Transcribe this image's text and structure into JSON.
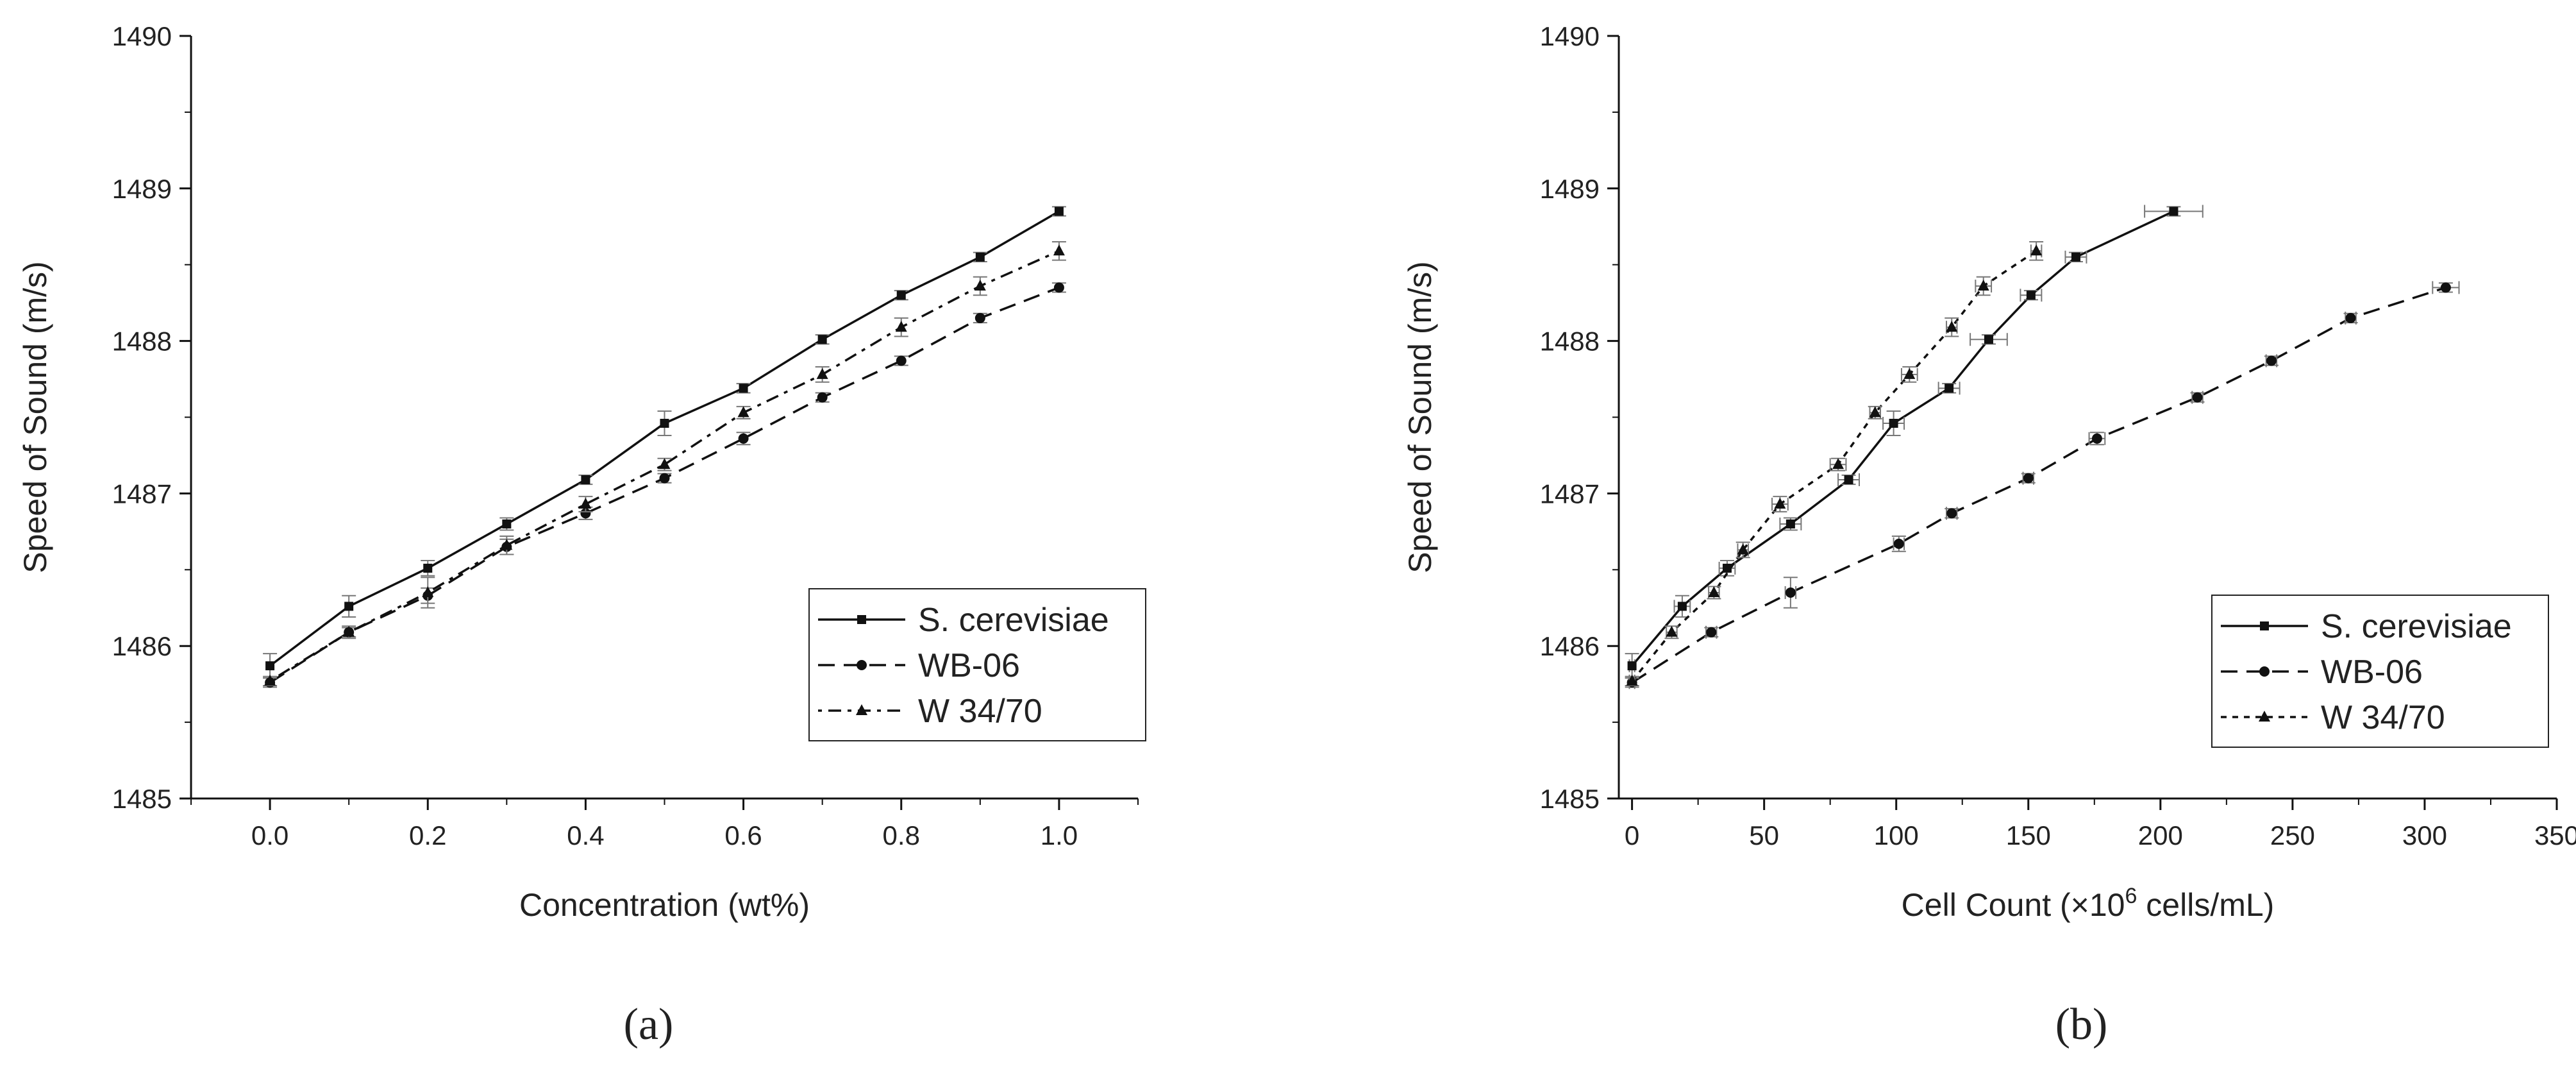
{
  "chart_data": [
    {
      "type": "line",
      "panel_label": "(a)",
      "title": "",
      "xlabel": "Concentration (wt%)",
      "ylabel": "Speed of Sound (m/s)",
      "xlim": [
        -0.1,
        1.1
      ],
      "ylim": [
        1485,
        1490
      ],
      "xticks": [
        "0.0",
        "0.2",
        "0.4",
        "0.6",
        "0.8",
        "1.0"
      ],
      "yticks": [
        "1485",
        "1486",
        "1487",
        "1488",
        "1489",
        "1490"
      ],
      "legend_position": "lower-right",
      "series": [
        {
          "name": "S. cerevisiae",
          "line_style": "solid",
          "marker": "square",
          "x": [
            0.0,
            0.1,
            0.2,
            0.3,
            0.4,
            0.5,
            0.6,
            0.7,
            0.8,
            0.9,
            1.0
          ],
          "y": [
            1485.87,
            1486.26,
            1486.51,
            1486.8,
            1487.09,
            1487.46,
            1487.69,
            1488.01,
            1488.3,
            1488.55,
            1488.85
          ],
          "yerr": [
            0.08,
            0.07,
            0.05,
            0.04,
            0.03,
            0.08,
            0.03,
            0.03,
            0.03,
            0.03,
            0.03
          ]
        },
        {
          "name": "WB-06",
          "line_style": "dashed",
          "marker": "circle",
          "x": [
            0.0,
            0.1,
            0.2,
            0.3,
            0.4,
            0.5,
            0.6,
            0.7,
            0.8,
            0.9,
            1.0
          ],
          "y": [
            1485.76,
            1486.09,
            1486.33,
            1486.65,
            1486.87,
            1487.1,
            1487.36,
            1487.63,
            1487.87,
            1488.15,
            1488.35
          ],
          "yerr": [
            0.03,
            0.03,
            0.05,
            0.05,
            0.04,
            0.03,
            0.04,
            0.03,
            0.03,
            0.03,
            0.03
          ]
        },
        {
          "name": "W 34/70",
          "line_style": "dash-dot",
          "marker": "triangle",
          "x": [
            0.0,
            0.1,
            0.2,
            0.3,
            0.4,
            0.5,
            0.6,
            0.7,
            0.8,
            0.9,
            1.0
          ],
          "y": [
            1485.77,
            1486.09,
            1486.35,
            1486.66,
            1486.93,
            1487.19,
            1487.53,
            1487.78,
            1488.09,
            1488.36,
            1488.59
          ],
          "yerr": [
            0.03,
            0.04,
            0.1,
            0.06,
            0.05,
            0.04,
            0.04,
            0.05,
            0.06,
            0.06,
            0.06
          ]
        }
      ]
    },
    {
      "type": "line",
      "panel_label": "(b)",
      "title": "",
      "xlabel": "Cell Count (×10⁶ cells/mL)",
      "ylabel": "Speed of Sound (m/s)",
      "xlim": [
        -5,
        350
      ],
      "ylim": [
        1485,
        1490
      ],
      "xticks": [
        "0",
        "50",
        "100",
        "150",
        "200",
        "250",
        "300",
        "350"
      ],
      "yticks": [
        "1485",
        "1486",
        "1487",
        "1488",
        "1489",
        "1490"
      ],
      "legend_position": "lower-right",
      "series": [
        {
          "name": "S. cerevisiae",
          "line_style": "solid",
          "marker": "square",
          "x": [
            0,
            19,
            36,
            60,
            82,
            99,
            120,
            135,
            151,
            168,
            205
          ],
          "y": [
            1485.87,
            1486.26,
            1486.51,
            1486.8,
            1487.09,
            1487.46,
            1487.69,
            1488.01,
            1488.3,
            1488.55,
            1488.85
          ],
          "yerr": [
            0.08,
            0.07,
            0.05,
            0.04,
            0.03,
            0.08,
            0.03,
            0.03,
            0.03,
            0.03,
            0.03
          ],
          "xerr": [
            1,
            3,
            3,
            4,
            4,
            4,
            4,
            7,
            4,
            4,
            11
          ]
        },
        {
          "name": "WB-06",
          "line_style": "dashed",
          "marker": "circle",
          "x": [
            0,
            30,
            60,
            101,
            121,
            150,
            176,
            214,
            242,
            272,
            308
          ],
          "y": [
            1485.76,
            1486.09,
            1486.35,
            1486.67,
            1486.87,
            1487.1,
            1487.36,
            1487.63,
            1487.87,
            1488.15,
            1488.35
          ],
          "yerr": [
            0.03,
            0.03,
            0.1,
            0.05,
            0.03,
            0.03,
            0.04,
            0.03,
            0.03,
            0.03,
            0.03
          ],
          "xerr": [
            1,
            2,
            2,
            2,
            2,
            2,
            3,
            2,
            2,
            2,
            5
          ]
        },
        {
          "name": "W 34/70",
          "line_style": "dotted",
          "marker": "triangle",
          "x": [
            0,
            15,
            31,
            42,
            56,
            78,
            92,
            105,
            121,
            133,
            153
          ],
          "y": [
            1485.77,
            1486.09,
            1486.35,
            1486.63,
            1486.93,
            1487.19,
            1487.53,
            1487.78,
            1488.09,
            1488.36,
            1488.59
          ],
          "yerr": [
            0.03,
            0.04,
            0.04,
            0.05,
            0.05,
            0.04,
            0.04,
            0.05,
            0.06,
            0.06,
            0.06
          ],
          "xerr": [
            1,
            2,
            2,
            2,
            3,
            3,
            2,
            3,
            2,
            3,
            2
          ]
        }
      ]
    }
  ]
}
